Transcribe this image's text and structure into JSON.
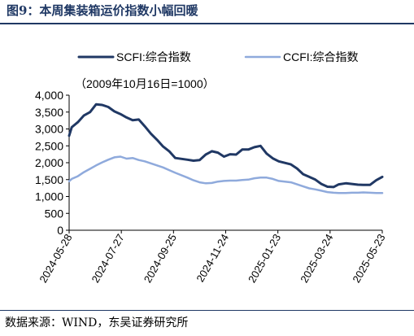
{
  "title": "图9：本周集装箱运价指数小幅回暖",
  "source": "数据来源：WIND，东吴证券研究所",
  "colors": {
    "scfi": "#203864",
    "ccfi": "#8faadc",
    "title": "#1f3864",
    "axis": "#000000"
  },
  "chart_data": {
    "type": "line",
    "annotation": "（2009年10月16日=1000）",
    "ylim": [
      0,
      4000
    ],
    "yticks": [
      0,
      500,
      1000,
      1500,
      2000,
      2500,
      3000,
      3500,
      4000
    ],
    "ytick_labels": [
      "0",
      "500",
      "1,000",
      "1,500",
      "2,000",
      "2,500",
      "3,000",
      "3,500",
      "4,000"
    ],
    "xlim": [
      "2024-05-28",
      "2025-05-23"
    ],
    "xtick_labels": [
      "2024-05-28",
      "2024-07-27",
      "2024-09-25",
      "2024-11-24",
      "2025-01-23",
      "2025-03-24",
      "2025-05-23"
    ],
    "legend_position": "top",
    "series": [
      {
        "name": "SCFI:综合指数",
        "x": [
          "2024-05-28",
          "2024-05-31",
          "2024-06-07",
          "2024-06-14",
          "2024-06-21",
          "2024-06-28",
          "2024-07-05",
          "2024-07-12",
          "2024-07-19",
          "2024-07-26",
          "2024-08-02",
          "2024-08-09",
          "2024-08-16",
          "2024-08-23",
          "2024-08-30",
          "2024-09-06",
          "2024-09-13",
          "2024-09-20",
          "2024-09-27",
          "2024-10-11",
          "2024-10-18",
          "2024-10-25",
          "2024-11-01",
          "2024-11-08",
          "2024-11-15",
          "2024-11-22",
          "2024-11-29",
          "2024-12-06",
          "2024-12-13",
          "2024-12-20",
          "2024-12-27",
          "2025-01-03",
          "2025-01-10",
          "2025-01-17",
          "2025-01-24",
          "2025-02-07",
          "2025-02-14",
          "2025-02-21",
          "2025-02-28",
          "2025-03-07",
          "2025-03-14",
          "2025-03-21",
          "2025-03-28",
          "2025-04-03",
          "2025-04-11",
          "2025-04-18",
          "2025-04-25",
          "2025-05-01",
          "2025-05-09",
          "2025-05-16",
          "2025-05-23"
        ],
        "values": [
          2800,
          3050,
          3200,
          3400,
          3500,
          3730,
          3710,
          3650,
          3520,
          3440,
          3340,
          3260,
          3280,
          3080,
          2860,
          2680,
          2480,
          2340,
          2140,
          2090,
          2060,
          2080,
          2240,
          2340,
          2300,
          2180,
          2250,
          2240,
          2390,
          2390,
          2460,
          2500,
          2270,
          2130,
          2040,
          1950,
          1830,
          1660,
          1580,
          1500,
          1370,
          1290,
          1280,
          1360,
          1390,
          1370,
          1350,
          1345,
          1345,
          1480,
          1580
        ]
      },
      {
        "name": "CCFI:综合指数",
        "x": [
          "2024-05-28",
          "2024-05-31",
          "2024-06-07",
          "2024-06-14",
          "2024-06-21",
          "2024-06-28",
          "2024-07-05",
          "2024-07-12",
          "2024-07-19",
          "2024-07-26",
          "2024-08-02",
          "2024-08-09",
          "2024-08-16",
          "2024-08-23",
          "2024-08-30",
          "2024-09-06",
          "2024-09-13",
          "2024-09-20",
          "2024-09-27",
          "2024-10-11",
          "2024-10-18",
          "2024-10-25",
          "2024-11-01",
          "2024-11-08",
          "2024-11-15",
          "2024-11-22",
          "2024-11-29",
          "2024-12-06",
          "2024-12-13",
          "2024-12-20",
          "2024-12-27",
          "2025-01-03",
          "2025-01-10",
          "2025-01-17",
          "2025-01-24",
          "2025-02-07",
          "2025-02-14",
          "2025-02-21",
          "2025-02-28",
          "2025-03-07",
          "2025-03-14",
          "2025-03-21",
          "2025-03-28",
          "2025-04-03",
          "2025-04-11",
          "2025-04-18",
          "2025-04-25",
          "2025-05-01",
          "2025-05-09",
          "2025-05-16",
          "2025-05-23"
        ],
        "values": [
          1450,
          1520,
          1600,
          1720,
          1820,
          1920,
          2010,
          2090,
          2160,
          2180,
          2120,
          2140,
          2080,
          2040,
          1980,
          1920,
          1860,
          1780,
          1700,
          1560,
          1480,
          1420,
          1390,
          1400,
          1440,
          1460,
          1470,
          1470,
          1490,
          1500,
          1540,
          1560,
          1560,
          1520,
          1460,
          1420,
          1360,
          1300,
          1240,
          1210,
          1170,
          1130,
          1110,
          1100,
          1100,
          1110,
          1110,
          1120,
          1110,
          1100,
          1100
        ]
      }
    ]
  }
}
